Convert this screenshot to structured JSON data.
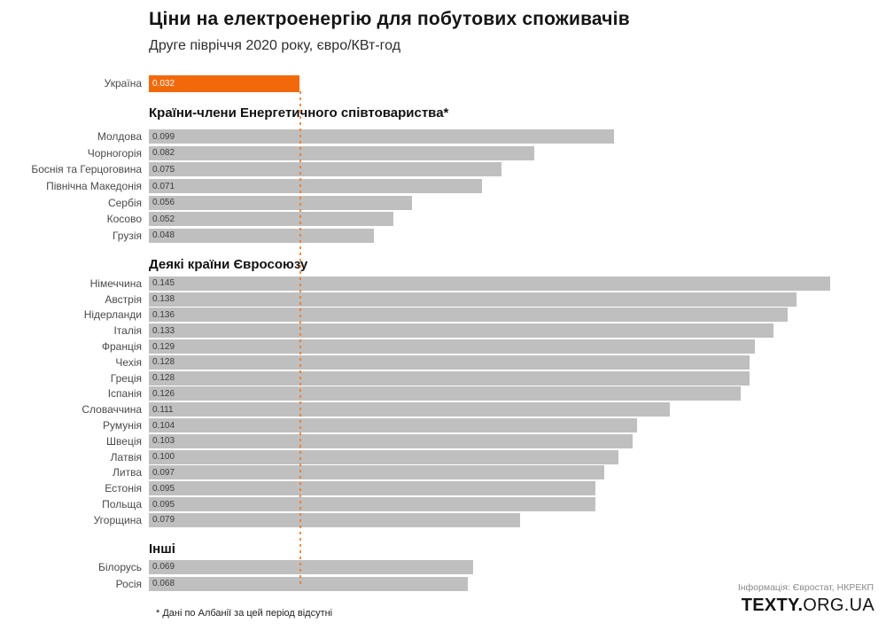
{
  "header": {
    "title": "Ціни на електроенергію для побутових споживачів",
    "subtitle": "Друге півріччя 2020 року, євро/КВт-год"
  },
  "chart_data": {
    "type": "bar",
    "orientation": "horizontal",
    "title": "Ціни на електроенергію для побутових споживачів",
    "subtitle": "Друге півріччя 2020 року, євро/КВт-год",
    "unit": "євро/КВт-год",
    "xlim": [
      0,
      0.145
    ],
    "value_decimals": 3,
    "bar_color": "#BFBFBF",
    "highlight_color": "#F2690C",
    "reference_line": {
      "at": 0.032,
      "style": "dashed",
      "color": "#F2690C"
    },
    "groups": [
      {
        "name": "",
        "items": [
          {
            "label": "Україна",
            "value": 0.032,
            "highlight": true
          }
        ]
      },
      {
        "name": "Країни-члени Енергетичного співтовариства*",
        "items": [
          {
            "label": "Молдова",
            "value": 0.099
          },
          {
            "label": "Чорногорія",
            "value": 0.082
          },
          {
            "label": "Боснія та Герцоговина",
            "value": 0.075
          },
          {
            "label": "Північна Македонія",
            "value": 0.071
          },
          {
            "label": "Сербія",
            "value": 0.056
          },
          {
            "label": "Косово",
            "value": 0.052
          },
          {
            "label": "Грузія",
            "value": 0.048
          }
        ]
      },
      {
        "name": "Деякі країни Євросоюзу",
        "items": [
          {
            "label": "Німеччина",
            "value": 0.145
          },
          {
            "label": "Австрія",
            "value": 0.138
          },
          {
            "label": "Нідерланди",
            "value": 0.136
          },
          {
            "label": "Італія",
            "value": 0.133
          },
          {
            "label": "Франція",
            "value": 0.129
          },
          {
            "label": "Чехія",
            "value": 0.128
          },
          {
            "label": "Греція",
            "value": 0.128
          },
          {
            "label": "Іспанія",
            "value": 0.126
          },
          {
            "label": "Словаччина",
            "value": 0.111
          },
          {
            "label": "Румунія",
            "value": 0.104
          },
          {
            "label": "Швеція",
            "value": 0.103
          },
          {
            "label": "Латвія",
            "value": 0.1
          },
          {
            "label": "Литва",
            "value": 0.097
          },
          {
            "label": "Естонія",
            "value": 0.095
          },
          {
            "label": "Польща",
            "value": 0.095
          },
          {
            "label": "Угорщина",
            "value": 0.079
          }
        ]
      },
      {
        "name": "Інші",
        "items": [
          {
            "label": "Білорусь",
            "value": 0.069
          },
          {
            "label": "Росія",
            "value": 0.068
          }
        ]
      }
    ]
  },
  "footnote": "* Дані по Албанії за цей період відсутні",
  "footer": {
    "source": "Інформація: Євростат, НКРЕКП",
    "brand_bold": "TEXTY.",
    "brand_rest": "ORG.UA"
  }
}
